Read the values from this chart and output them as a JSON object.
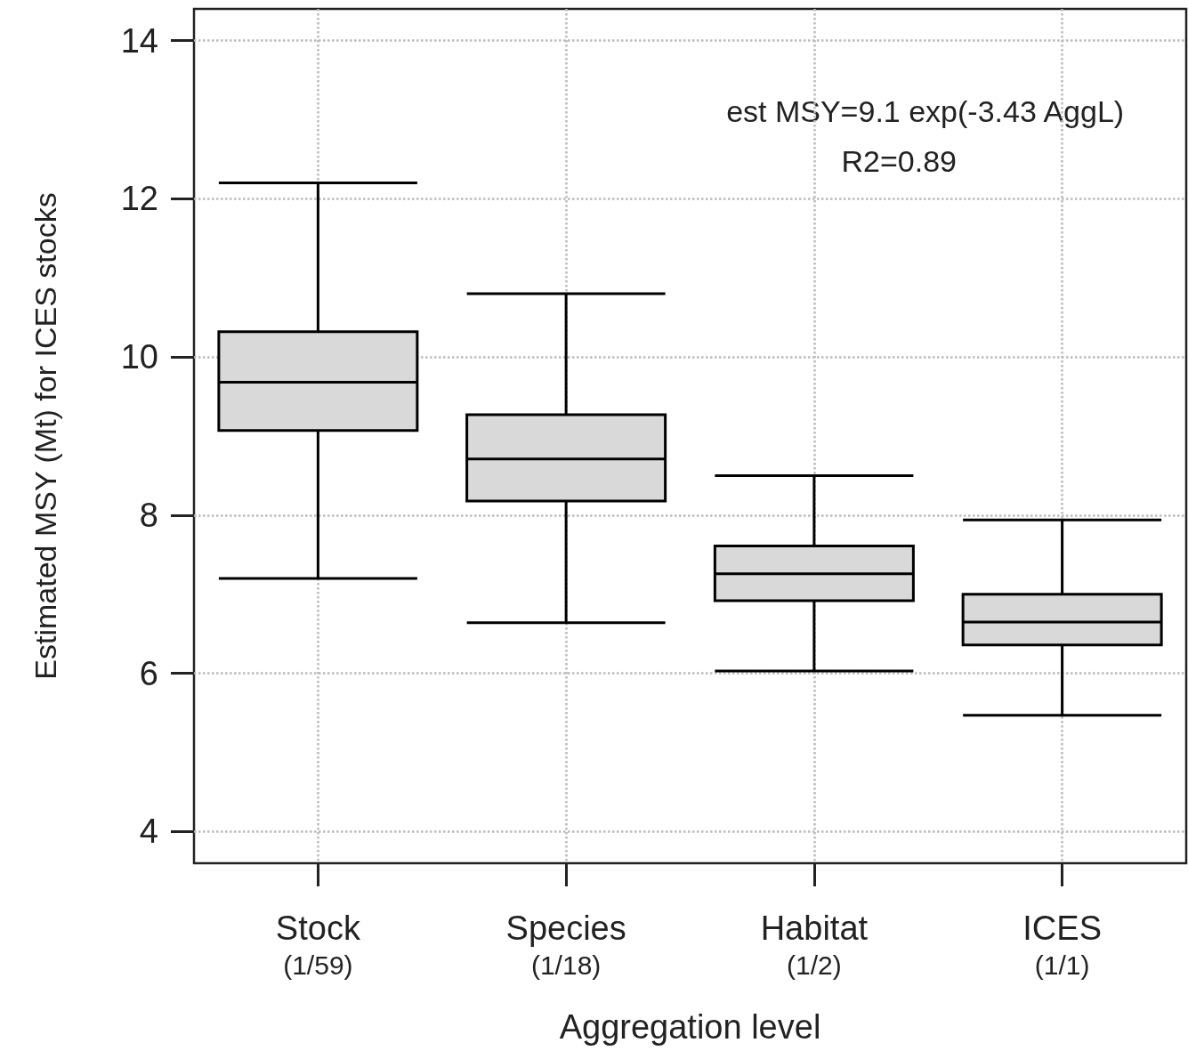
{
  "chart_data": {
    "type": "box",
    "xlabel": "Aggregation level",
    "ylabel": "Estimated MSY (Mt) for ICES stocks",
    "categories": [
      "Stock\n(1/59)",
      "Species\n(1/18)",
      "Habitat\n(1/2)",
      "ICES\n(1/1)"
    ],
    "boxes": [
      {
        "low": 7.2,
        "q1": 9.07,
        "median": 9.68,
        "q3": 10.32,
        "high": 12.2
      },
      {
        "low": 6.64,
        "q1": 8.18,
        "median": 8.71,
        "q3": 9.27,
        "high": 10.8
      },
      {
        "low": 6.03,
        "q1": 6.92,
        "median": 7.26,
        "q3": 7.61,
        "high": 8.5
      },
      {
        "low": 5.47,
        "q1": 6.36,
        "median": 6.65,
        "q3": 7.0,
        "high": 7.94
      }
    ],
    "color": "#d9d9d9",
    "ylim": [
      3.6,
      14.4
    ],
    "yticks": [
      4,
      6,
      8,
      10,
      12,
      14
    ],
    "grid": true,
    "annotations": [
      "est MSY=9.1 exp(-3.43 AggL)",
      "R2=0.89"
    ]
  }
}
